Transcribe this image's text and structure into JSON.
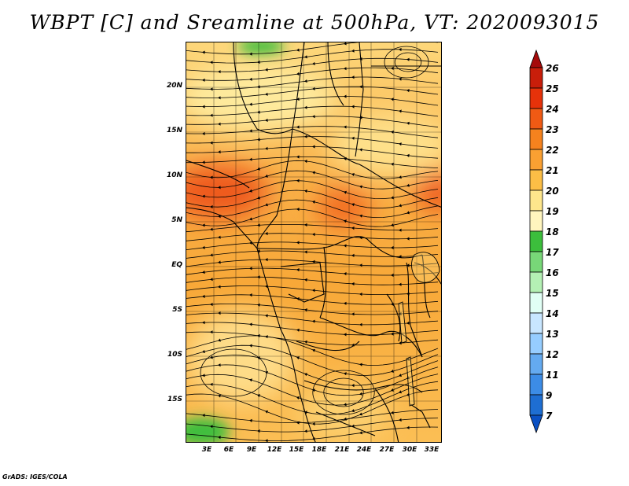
{
  "title": "WBPT [C] and Sreamline at 500hPa, VT: 2020093015",
  "credit": "GrADS: IGES/COLA",
  "map": {
    "latitude_labels": [
      "20N",
      "15N",
      "10N",
      "5N",
      "EQ",
      "5S",
      "10S",
      "15S"
    ],
    "longitude_labels": [
      "3E",
      "6E",
      "9E",
      "12E",
      "15E",
      "18E",
      "21E",
      "24E",
      "27E",
      "30E",
      "33E"
    ],
    "lat_range": [
      -20,
      24
    ],
    "lon_range": [
      0,
      34.5
    ],
    "regions": [
      {
        "lat": 9,
        "lon": 2,
        "value": 23.5
      },
      {
        "lat": 8.5,
        "lon": 5,
        "value": 23
      },
      {
        "lat": 7,
        "lon": 18,
        "value": 22.5
      },
      {
        "lat": 8.5,
        "lon": 33,
        "value": 23
      },
      {
        "lat": 21,
        "lon": 8,
        "value": 19
      },
      {
        "lat": 14,
        "lon": 24,
        "value": 19.5
      },
      {
        "lat": -12,
        "lon": 9,
        "value": 21
      },
      {
        "lat": -17,
        "lon": 21,
        "value": 20.5
      },
      {
        "lat": -18.5,
        "lon": 2,
        "value": 17.5
      },
      {
        "lat": 23.5,
        "lon": 9,
        "value": 17.5
      }
    ]
  },
  "colorbar": {
    "labels": [
      "26",
      "25",
      "24",
      "23",
      "22",
      "21",
      "20",
      "19",
      "18",
      "17",
      "16",
      "15",
      "14",
      "13",
      "12",
      "11",
      "9",
      "7"
    ],
    "colors": [
      "#a50a0a",
      "#c81e0a",
      "#e6320a",
      "#f05a14",
      "#f5821e",
      "#faa032",
      "#fcbe46",
      "#fee68c",
      "#fff5be",
      "#3cbe3c",
      "#78d778",
      "#b4f0b4",
      "#e1fff5",
      "#c8e6ff",
      "#96cdff",
      "#64aaf0",
      "#3c8ce6",
      "#1e6ed2",
      "#0a50c3"
    ]
  }
}
